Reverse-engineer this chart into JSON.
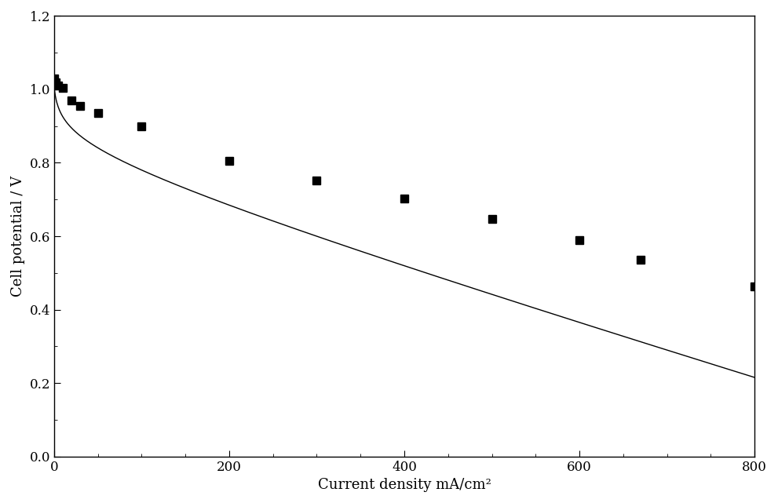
{
  "x_data": [
    0.5,
    2,
    5,
    10,
    20,
    30,
    50,
    100,
    200,
    300,
    400,
    500,
    600,
    670,
    800
  ],
  "y_data": [
    1.03,
    1.02,
    1.01,
    1.005,
    0.97,
    0.955,
    0.935,
    0.9,
    0.805,
    0.752,
    0.703,
    0.648,
    0.59,
    0.535,
    0.463
  ],
  "xlabel": "Current density mA/cm²",
  "ylabel": "Cell potential / V",
  "xlim": [
    0,
    800
  ],
  "ylim": [
    0.0,
    1.2
  ],
  "xticks": [
    0,
    200,
    400,
    600,
    800
  ],
  "yticks": [
    0.0,
    0.2,
    0.4,
    0.6,
    0.8,
    1.0,
    1.2
  ],
  "marker_color": "#000000",
  "line_color": "#000000",
  "background_color": "#ffffff",
  "marker_size": 7,
  "line_width": 1.0,
  "xlabel_fontsize": 13,
  "ylabel_fontsize": 13,
  "tick_fontsize": 12,
  "curve_V0": 1.01,
  "curve_a": 0.038,
  "curve_x0": 1.5,
  "curve_b": 0.000695
}
